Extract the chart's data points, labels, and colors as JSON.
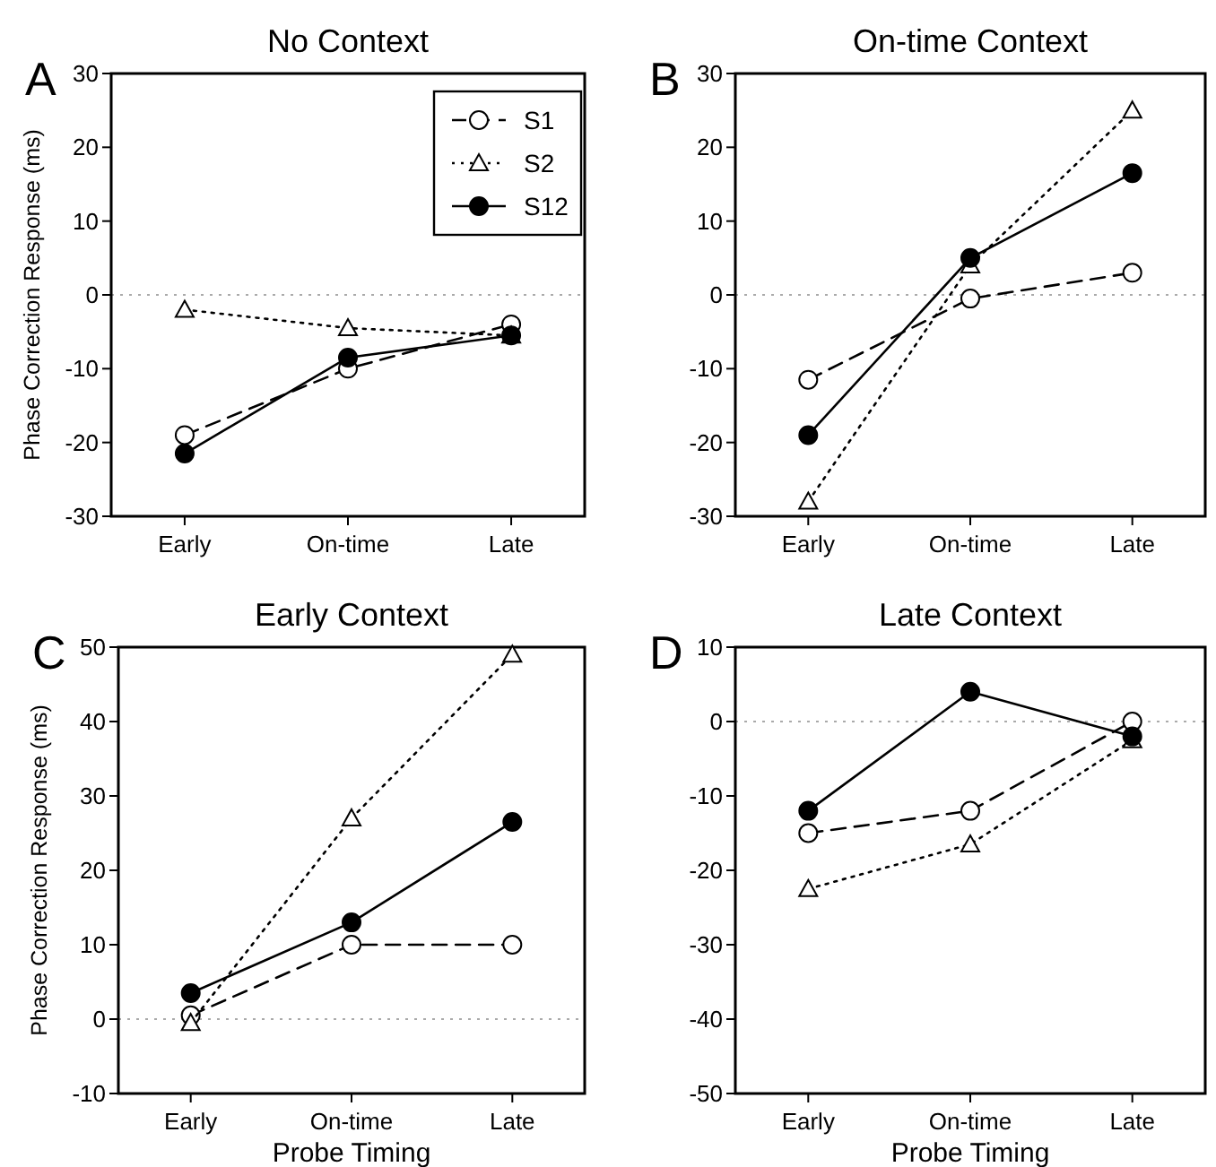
{
  "chart_data": [
    {
      "type": "line",
      "title": "No Context",
      "ylabel": "Phase Correction Response (ms)",
      "annotations": [
        "A"
      ],
      "categories": [
        "Early",
        "On-time",
        "Late"
      ],
      "ylim": [
        -30,
        30
      ],
      "yticks": [
        -30,
        -20,
        -10,
        0,
        10,
        20,
        30
      ],
      "legend": "top right",
      "ref_lines": [
        {
          "axis": "y",
          "value": 0,
          "color": "#aaaaaa",
          "line_style": "dotted"
        }
      ],
      "series": [
        {
          "name": "S1",
          "color": "#000000",
          "marker": "circle",
          "line_style": "dashed",
          "values": [
            -19,
            -10,
            -4
          ]
        },
        {
          "name": "S2",
          "color": "#000000",
          "marker": "triangle",
          "line_style": "dotted",
          "values": [
            -2,
            -4.5,
            -5.5
          ]
        },
        {
          "name": "S12",
          "color": "#000000",
          "marker": "circle",
          "line_style": "solid",
          "values": [
            -21.5,
            -8.5,
            -5.5
          ]
        }
      ]
    },
    {
      "type": "line",
      "title": "On-time Context",
      "annotations": [
        "B"
      ],
      "categories": [
        "Early",
        "On-time",
        "Late"
      ],
      "ylim": [
        -30,
        30
      ],
      "yticks": [
        -30,
        -20,
        -10,
        0,
        10,
        20,
        30
      ],
      "ref_lines": [
        {
          "axis": "y",
          "value": 0,
          "color": "#aaaaaa",
          "line_style": "dotted"
        }
      ],
      "series": [
        {
          "color": "#000000",
          "marker": "circle",
          "line_style": "dashed",
          "values": [
            -11.5,
            -0.5,
            3
          ]
        },
        {
          "color": "#000000",
          "marker": "triangle",
          "line_style": "dotted",
          "values": [
            -28,
            4,
            25
          ]
        },
        {
          "color": "#000000",
          "marker": "circle",
          "line_style": "solid",
          "values": [
            -19,
            5,
            16.5
          ]
        }
      ]
    },
    {
      "type": "line",
      "title": "Early Context",
      "ylabel": "Phase Correction Response (ms)",
      "xlabel": "Probe Timing",
      "annotations": [
        "C"
      ],
      "categories": [
        "Early",
        "On-time",
        "Late"
      ],
      "ylim": [
        -10,
        50
      ],
      "yticks": [
        -10,
        0,
        10,
        20,
        30,
        40,
        50
      ],
      "ref_lines": [
        {
          "axis": "y",
          "value": 0,
          "color": "#aaaaaa",
          "line_style": "dotted"
        }
      ],
      "series": [
        {
          "color": "#000000",
          "marker": "circle",
          "line_style": "dashed",
          "values": [
            0.5,
            10,
            10
          ]
        },
        {
          "color": "#000000",
          "marker": "triangle",
          "line_style": "dotted",
          "values": [
            -0.5,
            27,
            49
          ]
        },
        {
          "color": "#000000",
          "marker": "circle",
          "line_style": "solid",
          "values": [
            3.5,
            13,
            26.5
          ]
        }
      ]
    },
    {
      "type": "line",
      "title": "Late Context",
      "xlabel": "Probe Timing",
      "annotations": [
        "D"
      ],
      "categories": [
        "Early",
        "On-time",
        "Late"
      ],
      "ylim": [
        -50,
        10
      ],
      "yticks": [
        -50,
        -40,
        -30,
        -20,
        -10,
        0,
        10
      ],
      "ref_lines": [
        {
          "axis": "y",
          "value": 0,
          "color": "#aaaaaa",
          "line_style": "dotted"
        }
      ],
      "series": [
        {
          "color": "#000000",
          "marker": "circle",
          "line_style": "dashed",
          "values": [
            -15,
            -12,
            0
          ]
        },
        {
          "color": "#000000",
          "marker": "triangle",
          "line_style": "dotted",
          "values": [
            -22.5,
            -16.5,
            -2.5
          ]
        },
        {
          "color": "#000000",
          "marker": "circle",
          "line_style": "solid",
          "values": [
            -12,
            4,
            -2
          ]
        }
      ]
    }
  ]
}
